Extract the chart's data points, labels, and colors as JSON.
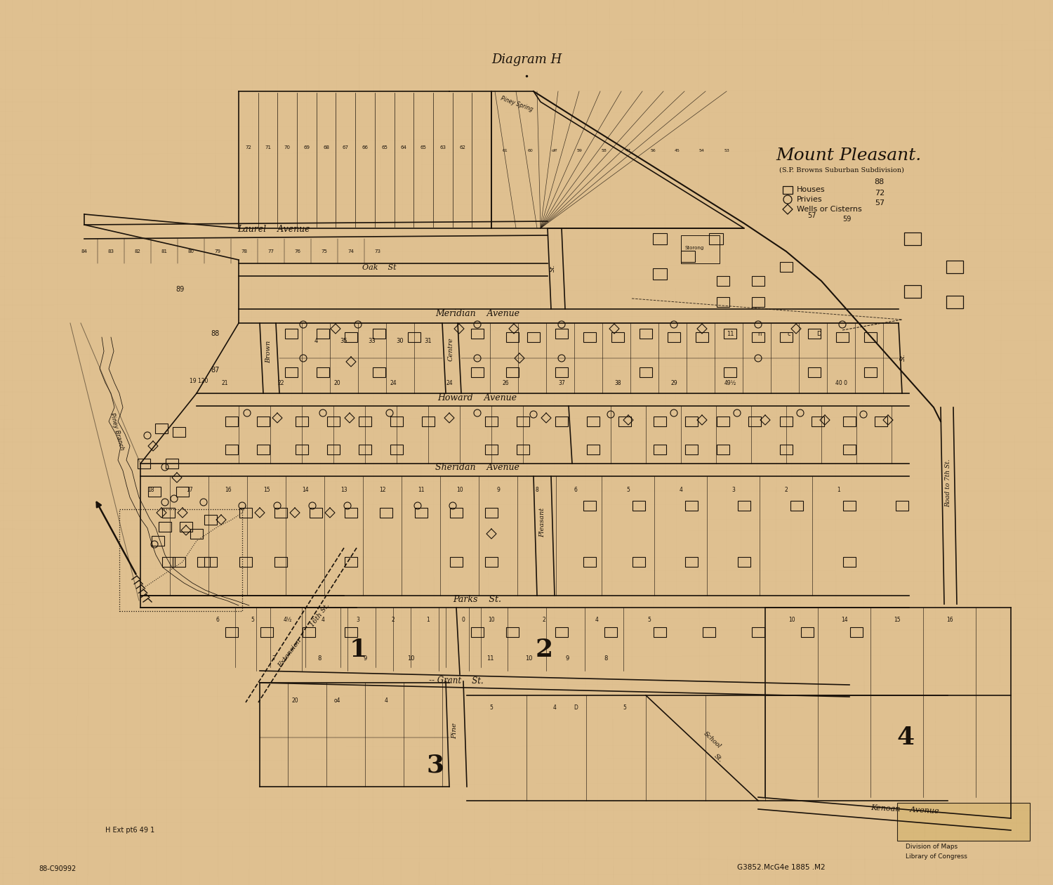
{
  "bg_color": "#dfc090",
  "ink_color": "#1a120a",
  "title": "Mount Pleasant.",
  "subtitle": "(S.P. Browns Suburban Subdivision)",
  "diagram_label": "Diagram H",
  "legend_houses": "Houses",
  "legend_houses_count": "88",
  "legend_privies": "Privies",
  "legend_privies_count": "72",
  "legend_wells": "Wells or Cisterns",
  "legend_wells_count": "57",
  "note": "H Ext pt6 49 1",
  "ref1": "88-C90992",
  "ref2": "G3852.McG4e 1885 .M2",
  "div_maps": "Division of Maps",
  "lib_cong": "Library of Congress"
}
